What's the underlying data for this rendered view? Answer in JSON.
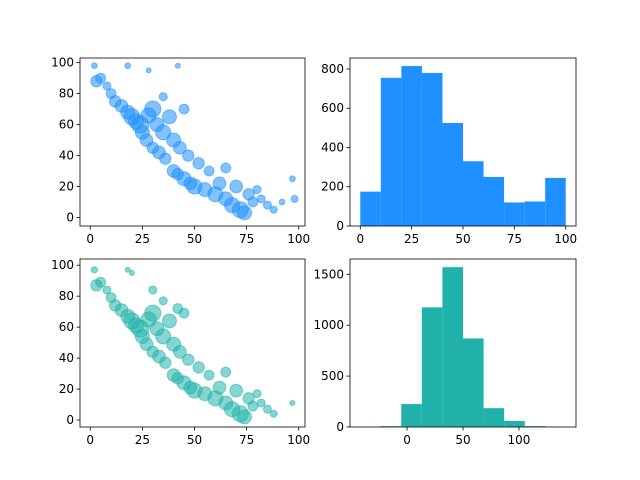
{
  "chart_data": [
    {
      "type": "scatter",
      "color": "#1e90ff",
      "alpha": 0.55,
      "x": [
        2,
        3,
        5,
        8,
        10,
        12,
        15,
        18,
        20,
        22,
        24,
        25,
        27,
        28,
        30,
        30,
        32,
        33,
        35,
        36,
        38,
        40,
        40,
        42,
        43,
        45,
        47,
        48,
        50,
        52,
        55,
        57,
        60,
        62,
        65,
        65,
        68,
        70,
        72,
        74,
        76,
        78,
        80,
        82,
        85,
        88,
        92,
        97,
        98,
        18,
        28,
        42,
        45,
        35
      ],
      "y": [
        98,
        88,
        90,
        85,
        80,
        75,
        72,
        68,
        65,
        62,
        60,
        55,
        50,
        66,
        70,
        45,
        60,
        42,
        55,
        38,
        65,
        30,
        50,
        28,
        45,
        25,
        40,
        22,
        20,
        35,
        18,
        30,
        15,
        22,
        12,
        32,
        8,
        20,
        5,
        3,
        15,
        10,
        18,
        12,
        8,
        5,
        10,
        25,
        12,
        98,
        95,
        98,
        70,
        78
      ],
      "sizes": [
        10,
        40,
        30,
        20,
        30,
        40,
        50,
        60,
        80,
        70,
        90,
        60,
        50,
        70,
        80,
        40,
        60,
        50,
        70,
        40,
        60,
        50,
        60,
        40,
        50,
        60,
        40,
        50,
        70,
        40,
        60,
        30,
        70,
        50,
        60,
        30,
        70,
        50,
        80,
        60,
        40,
        30,
        20,
        20,
        20,
        15,
        10,
        10,
        15,
        10,
        8,
        8,
        30,
        20
      ],
      "xlim": [
        -4.9,
        103
      ],
      "ylim": [
        -5.5,
        103
      ],
      "xticks": [
        0,
        25,
        50,
        75,
        100
      ],
      "yticks": [
        0,
        20,
        40,
        60,
        80,
        100
      ]
    },
    {
      "type": "histogram",
      "color": "#1e90ff",
      "bins": [
        0,
        10,
        20,
        30,
        40,
        50,
        60,
        70,
        80,
        90,
        100
      ],
      "counts": [
        175,
        755,
        815,
        780,
        525,
        330,
        250,
        120,
        125,
        245
      ],
      "xlim": [
        -5,
        105
      ],
      "ylim": [
        0,
        856
      ],
      "xticks": [
        0,
        25,
        50,
        75,
        100
      ],
      "yticks": [
        0,
        200,
        400,
        600,
        800
      ]
    },
    {
      "type": "scatter",
      "color": "#20b2aa",
      "alpha": 0.55,
      "x": [
        2,
        3,
        5,
        8,
        10,
        12,
        15,
        18,
        20,
        22,
        24,
        25,
        27,
        28,
        30,
        30,
        32,
        33,
        35,
        36,
        38,
        40,
        40,
        42,
        43,
        45,
        47,
        48,
        50,
        52,
        55,
        57,
        60,
        62,
        65,
        65,
        68,
        70,
        72,
        74,
        76,
        78,
        80,
        82,
        85,
        88,
        97,
        18,
        20,
        30,
        42,
        45,
        35
      ],
      "y": [
        97,
        87,
        89,
        84,
        79,
        74,
        71,
        67,
        64,
        61,
        59,
        54,
        49,
        65,
        69,
        44,
        59,
        41,
        54,
        37,
        64,
        29,
        49,
        27,
        44,
        24,
        39,
        21,
        19,
        34,
        17,
        29,
        14,
        21,
        11,
        31,
        7,
        19,
        4,
        2,
        14,
        9,
        17,
        11,
        7,
        4,
        11,
        97,
        95,
        84,
        72,
        69,
        77
      ],
      "sizes": [
        12,
        40,
        30,
        20,
        30,
        40,
        50,
        60,
        80,
        70,
        90,
        60,
        50,
        70,
        80,
        40,
        60,
        50,
        70,
        40,
        60,
        50,
        60,
        40,
        50,
        60,
        40,
        50,
        70,
        40,
        60,
        30,
        70,
        50,
        60,
        30,
        70,
        50,
        80,
        60,
        40,
        30,
        20,
        20,
        20,
        15,
        8,
        8,
        8,
        20,
        30,
        30,
        20
      ],
      "xlim": [
        -4.9,
        103
      ],
      "ylim": [
        -4.5,
        104
      ],
      "xticks": [
        0,
        25,
        50,
        75,
        100
      ],
      "yticks": [
        0,
        20,
        40,
        60,
        80,
        100
      ]
    },
    {
      "type": "histogram",
      "color": "#20b2aa",
      "bins": [
        -42,
        -23.6,
        -5.2,
        13.2,
        31.6,
        50,
        68.4,
        86.8,
        105.2,
        123.6,
        142
      ],
      "counts": [
        1,
        8,
        225,
        1175,
        1570,
        870,
        185,
        60,
        8,
        2
      ],
      "xlim": [
        -51,
        151
      ],
      "ylim": [
        0,
        1650
      ],
      "xticks": [
        0,
        50,
        100
      ],
      "yticks": [
        0,
        500,
        1000,
        1500
      ]
    }
  ]
}
